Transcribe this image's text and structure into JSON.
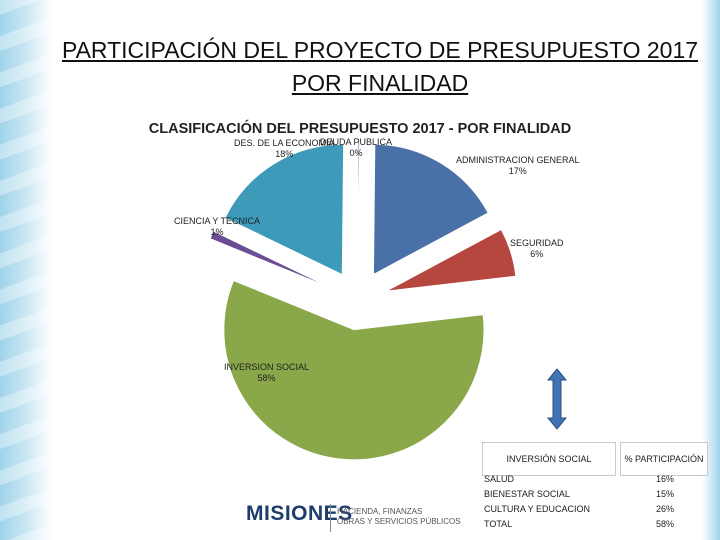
{
  "slide": {
    "title_line1": "PARTICIPACIÓN DEL PROYECTO DE PRESUPUESTO 2017",
    "title_line2": "POR FINALIDAD"
  },
  "chart_data": {
    "type": "pie",
    "title": "CLASIFICACIÓN DEL PRESUPUESTO 2017 -  POR FINALIDAD",
    "exploded": true,
    "slices": [
      {
        "name": "DEUDA PUBLICA",
        "value": 0,
        "label": "0%",
        "color": "#2f5f9a"
      },
      {
        "name": "ADMINISTRACION GENERAL",
        "value": 17,
        "label": "17%",
        "color": "#4a70a8"
      },
      {
        "name": "SEGURIDAD",
        "value": 6,
        "label": "6%",
        "color": "#b5473f"
      },
      {
        "name": "INVERSION SOCIAL",
        "value": 58,
        "label": "58%",
        "color": "#8aa74a"
      },
      {
        "name": "CIENCIA Y TECNICA",
        "value": 1,
        "label": "1%",
        "color": "#6a4d93"
      },
      {
        "name": "DES. DE LA ECONOMIA",
        "value": 18,
        "label": "18%",
        "color": "#3d9ab8"
      }
    ]
  },
  "table": {
    "header_left": "INVERSIÓN SOCIAL",
    "header_right": "% PARTICIPACIÓN",
    "rows": [
      {
        "label": "SALUD",
        "value": "16%"
      },
      {
        "label": "BIENESTAR SOCIAL",
        "value": "15%"
      },
      {
        "label": "CULTURA Y EDUCACION",
        "value": "26%"
      },
      {
        "label": "TOTAL",
        "value": "58%"
      }
    ]
  },
  "logo": {
    "brand": "MISIONES",
    "sub_line1": "HACIENDA, FINANZAS",
    "sub_line2": "OBRAS Y SERVICIOS PÚBLICOS"
  },
  "icons": {
    "arrow": "double-arrow-vertical-icon"
  }
}
